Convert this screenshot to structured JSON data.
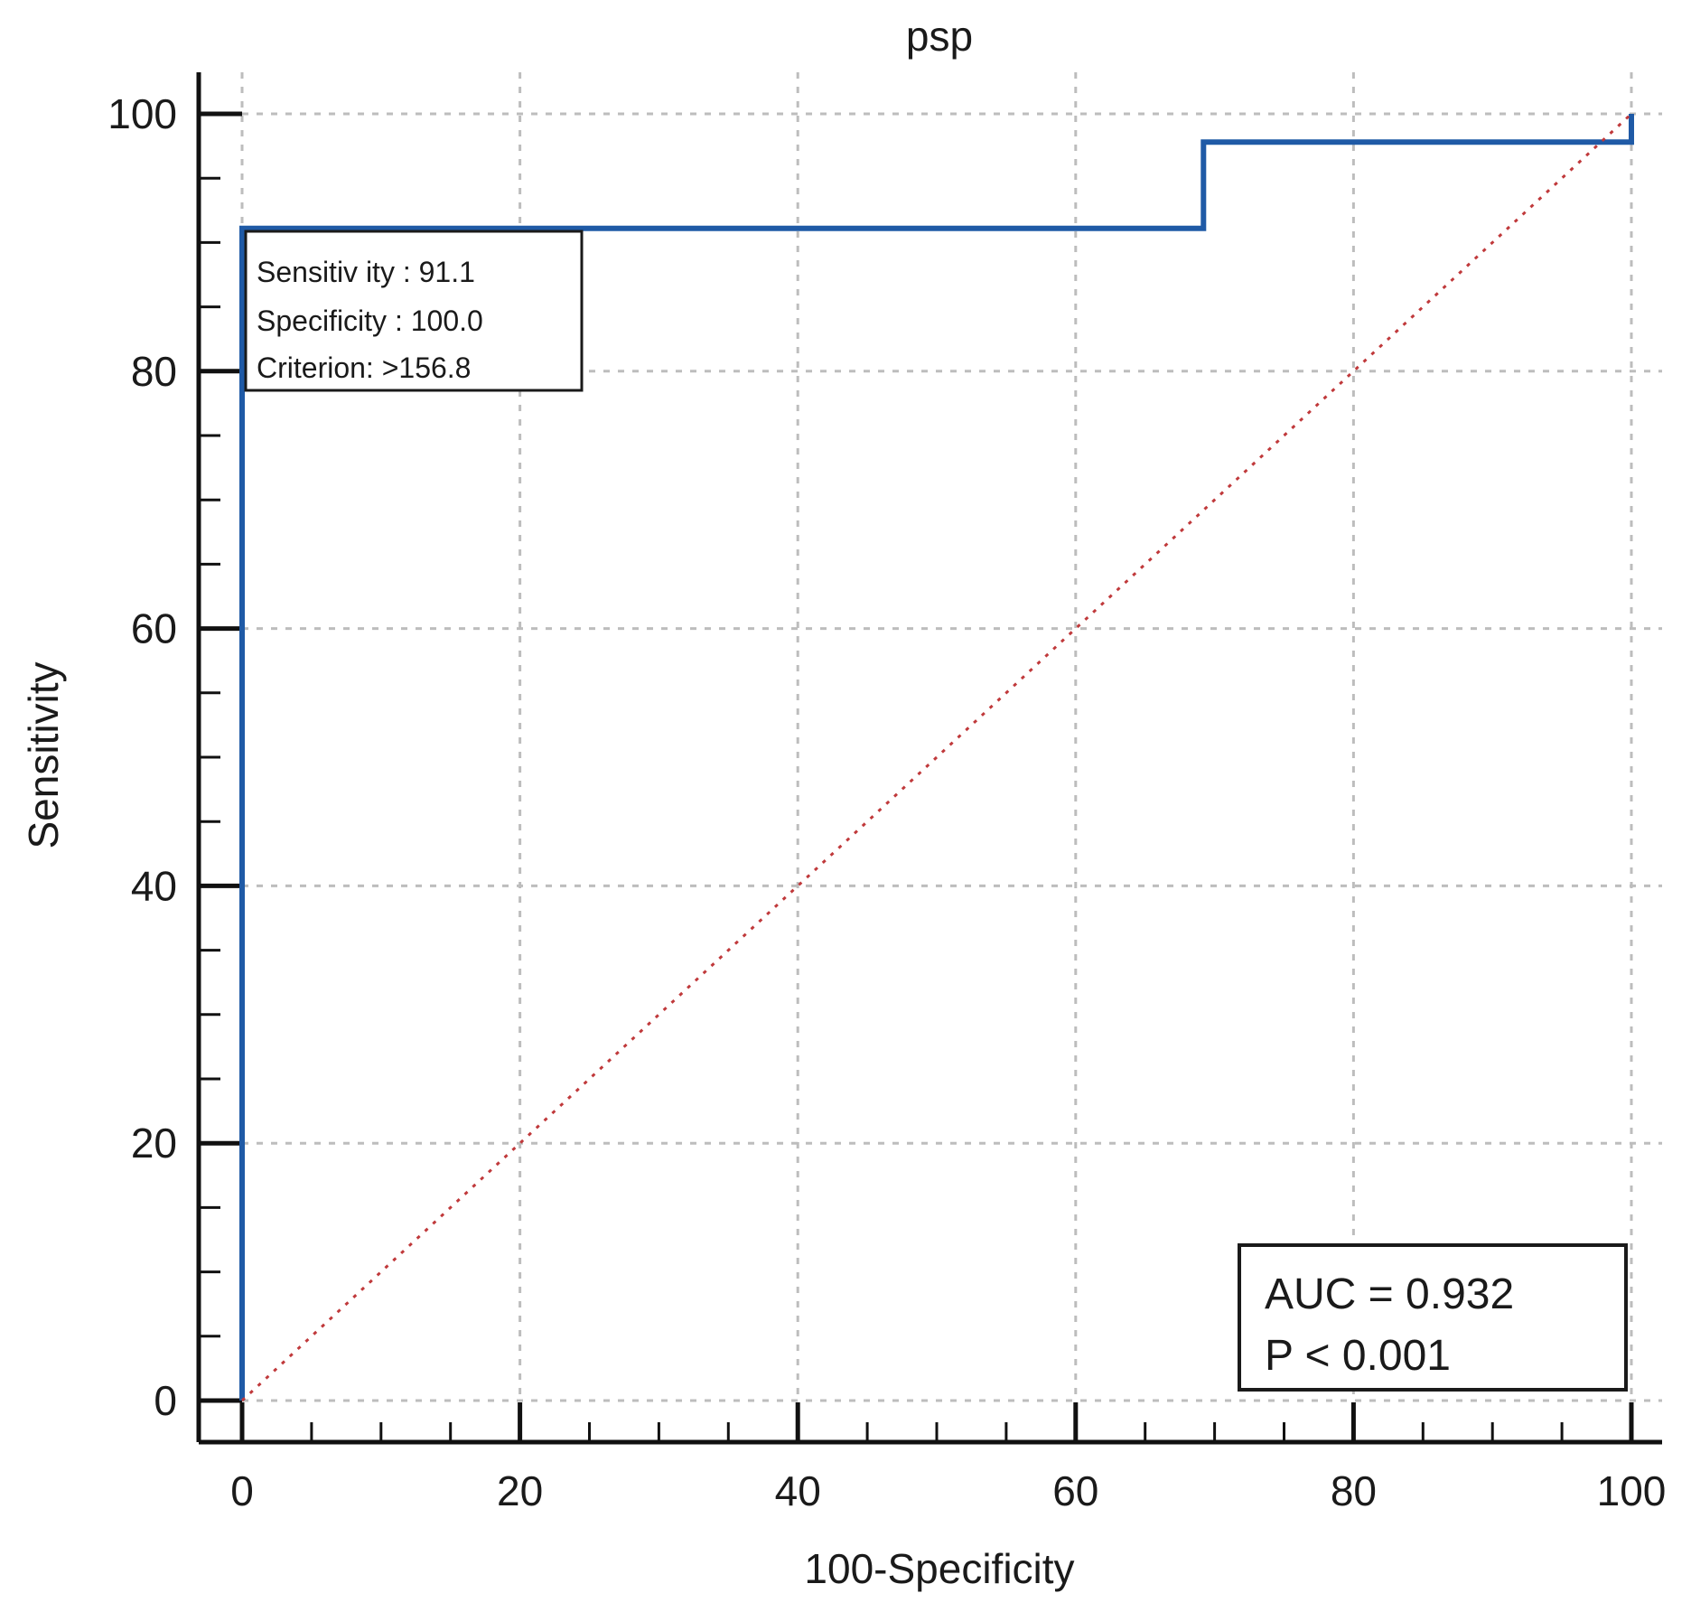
{
  "chart_data": {
    "type": "line",
    "title": "psp",
    "xlabel": "100-Specificity",
    "ylabel": "Sensitivity",
    "xlim": [
      0,
      100
    ],
    "ylim": [
      0,
      100
    ],
    "x_ticks": [
      0,
      20,
      40,
      60,
      80,
      100
    ],
    "y_ticks": [
      0,
      20,
      40,
      60,
      80,
      100
    ],
    "grid": true,
    "series": [
      {
        "color": "#1f5aa6",
        "style": "step",
        "points": [
          [
            0,
            0
          ],
          [
            0,
            91.1
          ],
          [
            69.2,
            91.1
          ],
          [
            69.2,
            97.8
          ],
          [
            100,
            97.8
          ],
          [
            100,
            100
          ]
        ]
      },
      {
        "color": "#c0393b",
        "style": "dotted",
        "points": [
          [
            0,
            0
          ],
          [
            100,
            100
          ]
        ]
      }
    ],
    "annotations": {
      "criterion_box": {
        "lines": [
          "Sensitiv ity : 91.1",
          "Specificity : 100.0",
          "Criterion: >156.8"
        ]
      },
      "stats_box": {
        "lines": [
          "AUC = 0.932",
          "P < 0.001"
        ]
      }
    }
  }
}
